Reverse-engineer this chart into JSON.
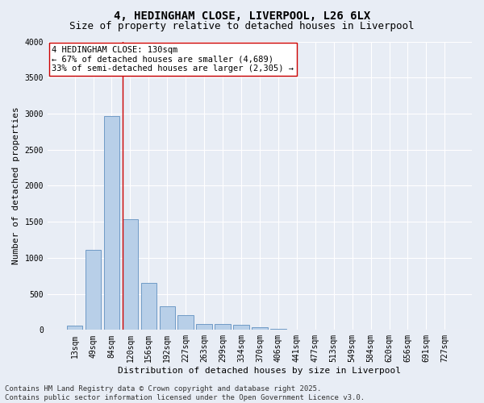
{
  "title_line1": "4, HEDINGHAM CLOSE, LIVERPOOL, L26 6LX",
  "title_line2": "Size of property relative to detached houses in Liverpool",
  "xlabel": "Distribution of detached houses by size in Liverpool",
  "ylabel": "Number of detached properties",
  "categories": [
    "13sqm",
    "49sqm",
    "84sqm",
    "120sqm",
    "156sqm",
    "192sqm",
    "227sqm",
    "263sqm",
    "299sqm",
    "334sqm",
    "370sqm",
    "406sqm",
    "441sqm",
    "477sqm",
    "513sqm",
    "549sqm",
    "584sqm",
    "620sqm",
    "656sqm",
    "691sqm",
    "727sqm"
  ],
  "values": [
    55,
    1110,
    2970,
    1530,
    650,
    330,
    210,
    85,
    80,
    70,
    35,
    10,
    5,
    0,
    0,
    0,
    0,
    0,
    0,
    0,
    0
  ],
  "bar_color": "#b8cfe8",
  "bar_edge_color": "#6090c0",
  "vline_color": "#cc0000",
  "vline_index": 3,
  "annotation_text": "4 HEDINGHAM CLOSE: 130sqm\n← 67% of detached houses are smaller (4,689)\n33% of semi-detached houses are larger (2,305) →",
  "annotation_box_facecolor": "#ffffff",
  "annotation_box_edgecolor": "#cc0000",
  "ylim": [
    0,
    4000
  ],
  "yticks": [
    0,
    500,
    1000,
    1500,
    2000,
    2500,
    3000,
    3500,
    4000
  ],
  "background_color": "#e8edf5",
  "grid_color": "#ffffff",
  "footer_line1": "Contains HM Land Registry data © Crown copyright and database right 2025.",
  "footer_line2": "Contains public sector information licensed under the Open Government Licence v3.0.",
  "title_fontsize": 10,
  "subtitle_fontsize": 9,
  "axis_label_fontsize": 8,
  "tick_fontsize": 7,
  "annotation_fontsize": 7.5,
  "footer_fontsize": 6.5
}
